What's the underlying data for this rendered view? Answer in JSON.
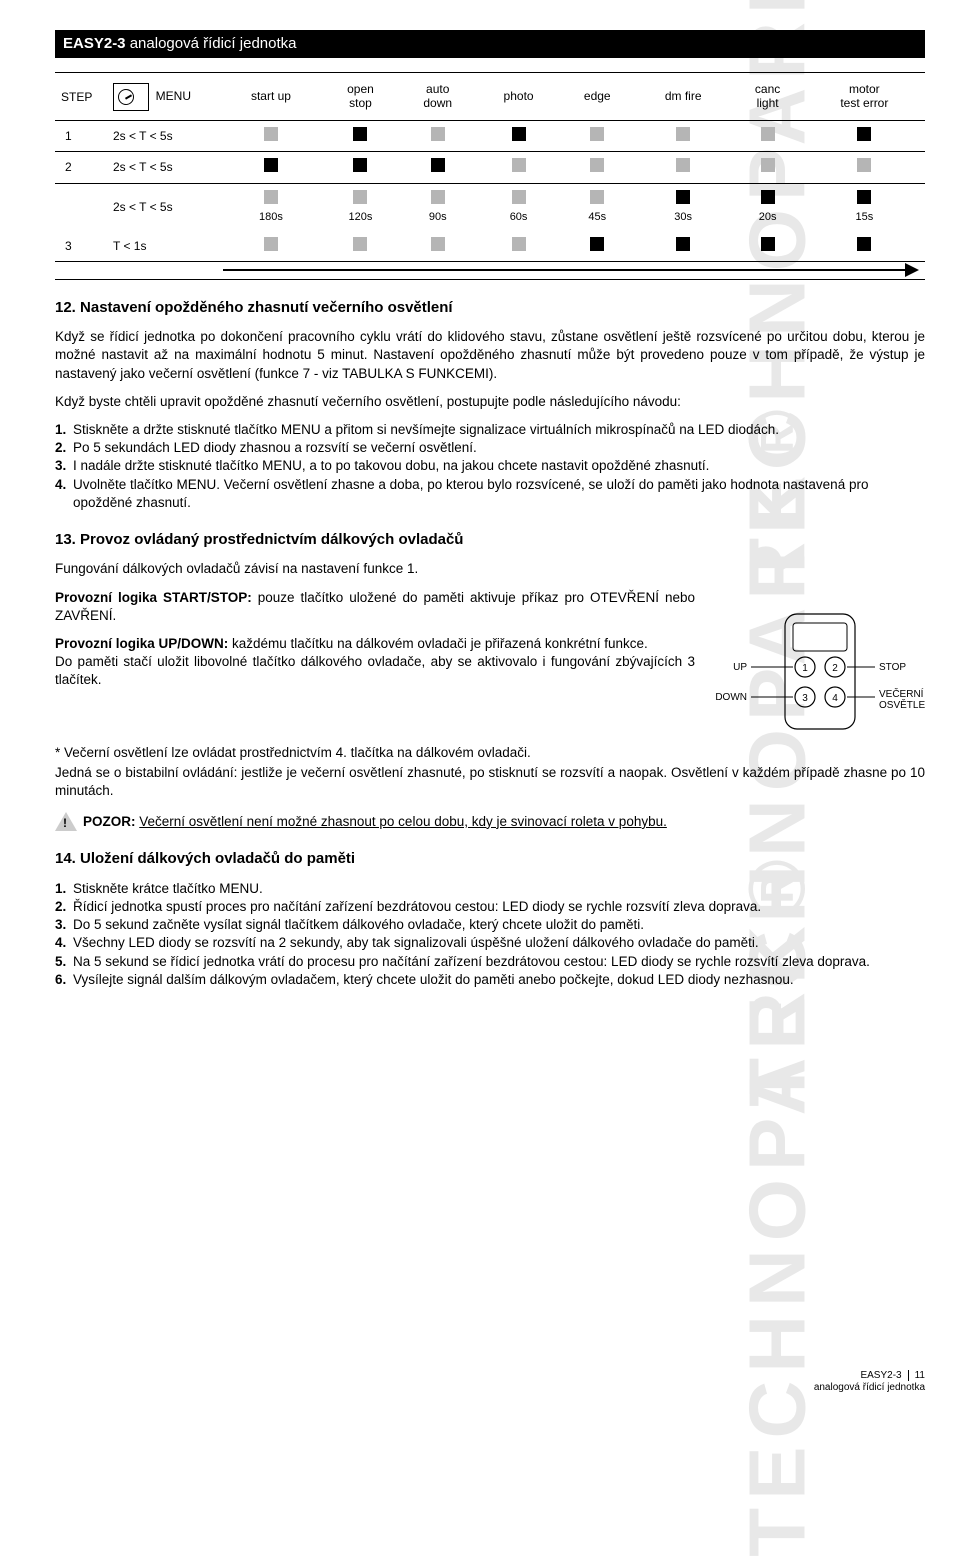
{
  "watermark": "TECHNOPARK®",
  "header": {
    "product": "EASY2-3",
    "subtitle": "analogová řídicí jednotka"
  },
  "table": {
    "cols": {
      "step": "STEP",
      "menu": "MENU",
      "c0": [
        "start up"
      ],
      "c1": [
        "open",
        "stop"
      ],
      "c2": [
        "auto",
        "down"
      ],
      "c3": [
        "photo"
      ],
      "c4": [
        "edge"
      ],
      "c5": [
        "dm fire"
      ],
      "c6": [
        "canc",
        "light"
      ],
      "c7": [
        "motor",
        "test error"
      ]
    },
    "rows": [
      {
        "step": "1",
        "menu": "2s < T < 5s",
        "cells": [
          "g",
          "b",
          "g",
          "b",
          "g",
          "g",
          "g",
          "b"
        ]
      },
      {
        "step": "2",
        "menu": "2s < T < 5s",
        "cells": [
          "b",
          "b",
          "b",
          "g",
          "g",
          "g",
          "g",
          "g"
        ]
      },
      {
        "dual_top": {
          "menu": "2s < T < 5s",
          "cells": [
            "g",
            "g",
            "g",
            "g",
            "g",
            "b",
            "b",
            "b"
          ],
          "vals": [
            "180s",
            "120s",
            "90s",
            "60s",
            "45s",
            "30s",
            "20s",
            "15s"
          ]
        },
        "dual_bot": {
          "step": "3",
          "menu": "T < 1s",
          "cells": [
            "g",
            "g",
            "g",
            "g",
            "b",
            "b",
            "b",
            "b"
          ]
        },
        "arrow": true
      }
    ]
  },
  "s12": {
    "title": "12. Nastavení opožděného zhasnutí večerního osvětlení",
    "p1": "Když se řídicí jednotka po dokončení pracovního cyklu vrátí do klidového stavu, zůstane osvětlení ještě rozsvícené po určitou dobu, kterou je možné nastavit až na maximální hodnotu 5 minut. Nastavení opožděného zhasnutí může být provedeno pouze v tom případě, že výstup je nastavený jako večerní osvětlení (funkce 7 - viz TABULKA S FUNKCEMI).",
    "p2": "Když byste chtěli upravit opožděné zhasnutí večerního osvětlení, postupujte podle následujícího návodu:",
    "steps": [
      "Stiskněte a držte stisknuté tlačítko MENU a přitom si nevšímejte signalizace virtuálních mikrospínačů na LED diodách.",
      "Po 5 sekundách LED diody zhasnou a rozsvítí se večerní osvětlení.",
      "I nadále držte stisknuté tlačítko MENU, a to po takovou dobu, na jakou chcete nastavit opožděné zhasnutí.",
      "Uvolněte tlačítko MENU. Večerní osvětlení zhasne a doba, po kterou bylo rozsvícené, se uloží do paměti jako hodnota nastavená pro opožděné zhasnutí."
    ]
  },
  "s13": {
    "title": "13. Provoz ovládaný prostřednictvím dálkových ovladačů",
    "p1": "Fungování dálkových ovladačů závisí na nastavení funkce 1.",
    "p2a": "Provozní logika START/STOP:",
    "p2b": " pouze tlačítko uložené do paměti aktivuje příkaz pro OTEVŘENÍ nebo ZAVŘENÍ.",
    "p3a": "Provozní logika UP/DOWN:",
    "p3b": " každému tlačítku na dálkovém ovladači je přiřazená konkrétní funkce.",
    "p3c": "Do paměti stačí uložit libovolné tlačítko dálkového ovladače, aby se aktivovalo i fungování zbývajících 3 tlačítek.",
    "p4": "* Večerní osvětlení lze ovládat prostřednictvím 4. tlačítka na dálkovém ovladači.",
    "p5": "Jedná se o bistabilní ovládání: jestliže je večerní osvětlení zhasnuté, po stisknutí se rozsvítí a naopak. Osvětlení v každém případě zhasne po 10 minutách.",
    "remote": {
      "up": "UP",
      "down": "DOWN",
      "stop": "STOP",
      "light": "VEČERNÍ OSVĚTLENÍ*",
      "b1": "1",
      "b2": "2",
      "b3": "3",
      "b4": "4"
    }
  },
  "warn": {
    "label": "POZOR:",
    "text": "Večerní osvětlení není možné zhasnout po celou dobu, kdy je svinovací roleta v pohybu."
  },
  "s14": {
    "title": "14. Uložení dálkových ovladačů do paměti",
    "steps": [
      "Stiskněte krátce tlačítko MENU.",
      "Řídicí jednotka spustí proces pro načítání zařízení bezdrátovou cestou: LED diody se rychle rozsvítí zleva doprava.",
      "Do 5 sekund začněte vysílat signál tlačítkem dálkového ovladače, který chcete uložit do paměti.",
      "Všechny LED diody se rozsvítí na 2 sekundy, aby tak signalizovali úspěšné uložení dálkového ovladače do paměti.",
      "Na 5 sekund se řídicí jednotka vrátí do procesu pro načítání zařízení bezdrátovou cestou: LED diody se rychle rozsvítí zleva doprava.",
      "Vysílejte signál dalším dálkovým ovladačem, který chcete uložit do paměti anebo počkejte, dokud LED diody nezhasnou."
    ]
  },
  "footer": {
    "l1": "EASY2-3",
    "l2": "analogová řídicí jednotka",
    "page": "11"
  }
}
